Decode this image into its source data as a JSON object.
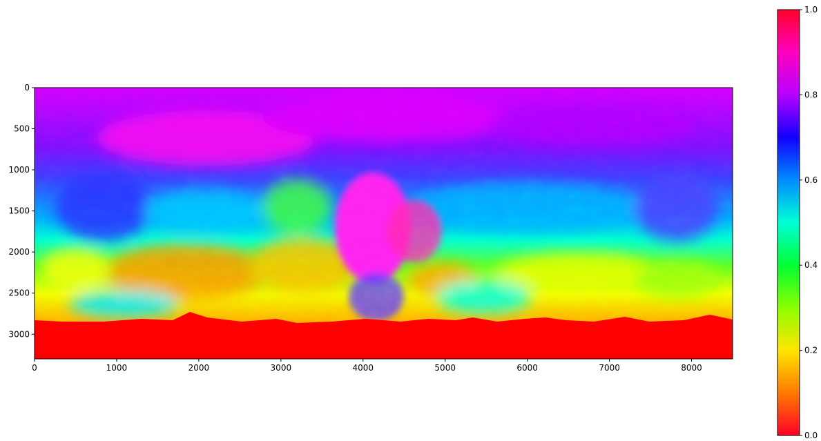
{
  "chart_data": {
    "type": "heatmap",
    "title": "",
    "xlabel": "",
    "ylabel": "",
    "xlim": [
      0,
      8500
    ],
    "ylim": [
      3300,
      0
    ],
    "xticks": [
      "0",
      "1000",
      "2000",
      "3000",
      "4000",
      "5000",
      "6000",
      "7000",
      "8000"
    ],
    "yticks": [
      "0",
      "500",
      "1000",
      "1500",
      "2000",
      "2500",
      "3000"
    ],
    "colormap": "gist_rainbow",
    "colorbar": {
      "range": [
        0.0,
        1.0
      ],
      "ticks": [
        "0.0",
        "0.2",
        "0.4",
        "0.6",
        "0.8",
        "1.0"
      ]
    },
    "regions": [
      {
        "description": "north polar band",
        "approx_value": 0.82
      },
      {
        "description": "mid-north band",
        "approx_value": 0.68
      },
      {
        "description": "central bright region near x=4200",
        "approx_value": 0.85
      },
      {
        "description": "southern equatorial band",
        "approx_value": 0.2
      },
      {
        "description": "no-data area below y~2800",
        "approx_value": 1.0
      }
    ],
    "grid": false,
    "legend": "none"
  }
}
